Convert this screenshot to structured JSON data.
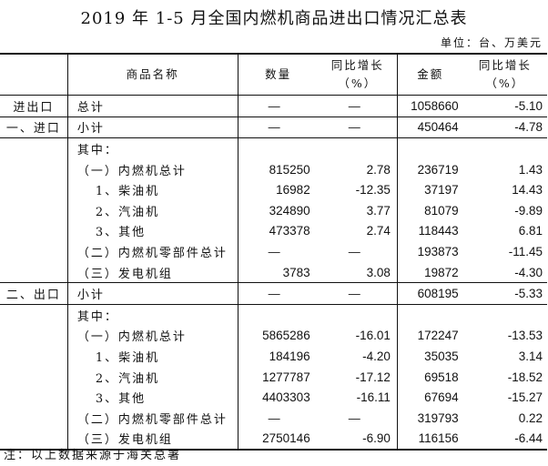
{
  "title": "2019 年 1-5 月全国内燃机商品进出口情况汇总表",
  "unit": "单位：台、万美元",
  "headers": {
    "name": "商品名称",
    "quantity": "数量",
    "quantity_yoy": "同比增长",
    "quantity_yoy_unit": "（%）",
    "amount": "金额",
    "amount_yoy": "同比增长",
    "amount_yoy_unit": "（%）"
  },
  "rows": [
    {
      "section": "进出口",
      "name": "总计",
      "indent": 0,
      "quantity": "—",
      "quantity_yoy": "—",
      "amount": "1058660",
      "amount_yoy": "-5.10",
      "sep": true
    },
    {
      "section": "一、进口",
      "name": "小计",
      "indent": 0,
      "quantity": "—",
      "quantity_yoy": "—",
      "amount": "450464",
      "amount_yoy": "-4.78",
      "sep": true
    },
    {
      "section": "",
      "name": "其中：",
      "indent": 0,
      "quantity": "",
      "quantity_yoy": "",
      "amount": "",
      "amount_yoy": "",
      "sep": true
    },
    {
      "section": "",
      "name": "（一）内燃机总计",
      "indent": 0,
      "quantity": "815250",
      "quantity_yoy": "2.78",
      "amount": "236719",
      "amount_yoy": "1.43"
    },
    {
      "section": "",
      "name": "1、柴油机",
      "indent": 1,
      "quantity": "16982",
      "quantity_yoy": "-12.35",
      "amount": "37197",
      "amount_yoy": "14.43"
    },
    {
      "section": "",
      "name": "2、汽油机",
      "indent": 1,
      "quantity": "324890",
      "quantity_yoy": "3.77",
      "amount": "81079",
      "amount_yoy": "-9.89"
    },
    {
      "section": "",
      "name": "3、其他",
      "indent": 1,
      "quantity": "473378",
      "quantity_yoy": "2.74",
      "amount": "118443",
      "amount_yoy": "6.81"
    },
    {
      "section": "",
      "name": "（二）内燃机零部件总计",
      "indent": 0,
      "quantity": "—",
      "quantity_yoy": "—",
      "amount": "193873",
      "amount_yoy": "-11.45"
    },
    {
      "section": "",
      "name": "（三）发电机组",
      "indent": 0,
      "quantity": "3783",
      "quantity_yoy": "3.08",
      "amount": "19872",
      "amount_yoy": "-4.30"
    },
    {
      "section": "二、出口",
      "name": "小计",
      "indent": 0,
      "quantity": "—",
      "quantity_yoy": "—",
      "amount": "608195",
      "amount_yoy": "-5.33",
      "sep": true
    },
    {
      "section": "",
      "name": "其中：",
      "indent": 0,
      "quantity": "",
      "quantity_yoy": "",
      "amount": "",
      "amount_yoy": "",
      "sep": true
    },
    {
      "section": "",
      "name": "（一）内燃机总计",
      "indent": 0,
      "quantity": "5865286",
      "quantity_yoy": "-16.01",
      "amount": "172247",
      "amount_yoy": "-13.53"
    },
    {
      "section": "",
      "name": "1、柴油机",
      "indent": 1,
      "quantity": "184196",
      "quantity_yoy": "-4.20",
      "amount": "35035",
      "amount_yoy": "3.14"
    },
    {
      "section": "",
      "name": "2、汽油机",
      "indent": 1,
      "quantity": "1277787",
      "quantity_yoy": "-17.12",
      "amount": "69518",
      "amount_yoy": "-18.52"
    },
    {
      "section": "",
      "name": "3、其他",
      "indent": 1,
      "quantity": "4403303",
      "quantity_yoy": "-16.11",
      "amount": "67694",
      "amount_yoy": "-15.27"
    },
    {
      "section": "",
      "name": "（二）内燃机零部件总计",
      "indent": 0,
      "quantity": "—",
      "quantity_yoy": "—",
      "amount": "319793",
      "amount_yoy": "0.22"
    },
    {
      "section": "",
      "name": "（三）发电机组",
      "indent": 0,
      "quantity": "2750146",
      "quantity_yoy": "-6.90",
      "amount": "116156",
      "amount_yoy": "-6.44"
    }
  ],
  "note": "注：以上数据来源于海关总署"
}
